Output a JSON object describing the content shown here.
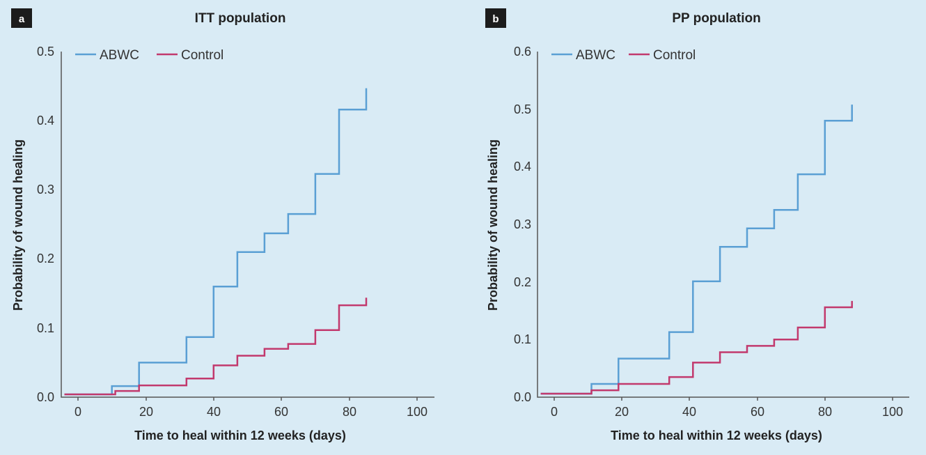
{
  "colors": {
    "abwc": "#5a9fd4",
    "control": "#c2396d",
    "badge": "#1c1c1c"
  },
  "legend": [
    {
      "label": "ABWC",
      "color": "#5a9fd4"
    },
    {
      "label": "Control",
      "color": "#c2396d"
    }
  ],
  "chart_data": [
    {
      "type": "line",
      "step": true,
      "panel_label": "a",
      "title": "ITT population",
      "xlabel": "Time to heal within 12 weeks (days)",
      "ylabel": "Probability of wound healing",
      "xlim": [
        -4,
        105
      ],
      "ylim": [
        0,
        0.5
      ],
      "xticks": [
        "0",
        "20",
        "40",
        "60",
        "80",
        "100"
      ],
      "yticks": [
        "0.0",
        "0.1",
        "0.2",
        "0.3",
        "0.4",
        "0.5"
      ],
      "grid": false,
      "legend_position": "top-left",
      "series": [
        {
          "name": "ABWC",
          "x": [
            -4,
            10,
            18,
            32,
            40,
            47,
            55,
            62,
            70,
            77,
            85
          ],
          "y": [
            0.004,
            0.016,
            0.05,
            0.087,
            0.16,
            0.21,
            0.237,
            0.265,
            0.323,
            0.416,
            0.447
          ]
        },
        {
          "name": "Control",
          "x": [
            -4,
            11,
            18,
            32,
            40,
            47,
            55,
            62,
            70,
            77,
            85
          ],
          "y": [
            0.004,
            0.009,
            0.017,
            0.027,
            0.046,
            0.06,
            0.07,
            0.077,
            0.097,
            0.133,
            0.144
          ]
        }
      ]
    },
    {
      "type": "line",
      "step": true,
      "panel_label": "b",
      "title": "PP population",
      "xlabel": "Time to heal within 12 weeks (days)",
      "ylabel": "Probability of wound healing",
      "xlim": [
        -4,
        105
      ],
      "ylim": [
        0,
        0.6
      ],
      "xticks": [
        "0",
        "20",
        "40",
        "60",
        "80",
        "100"
      ],
      "yticks": [
        "0.0",
        "0.1",
        "0.2",
        "0.3",
        "0.4",
        "0.5",
        "0.6"
      ],
      "grid": false,
      "legend_position": "top-left",
      "series": [
        {
          "name": "ABWC",
          "x": [
            -4,
            11,
            19,
            34,
            41,
            49,
            57,
            65,
            72,
            80,
            88
          ],
          "y": [
            0.006,
            0.023,
            0.067,
            0.113,
            0.201,
            0.261,
            0.293,
            0.325,
            0.387,
            0.48,
            0.508
          ]
        },
        {
          "name": "Control",
          "x": [
            -4,
            11,
            19,
            34,
            41,
            49,
            57,
            65,
            72,
            80,
            88
          ],
          "y": [
            0.006,
            0.012,
            0.023,
            0.035,
            0.06,
            0.078,
            0.089,
            0.1,
            0.121,
            0.156,
            0.167
          ]
        }
      ]
    }
  ]
}
